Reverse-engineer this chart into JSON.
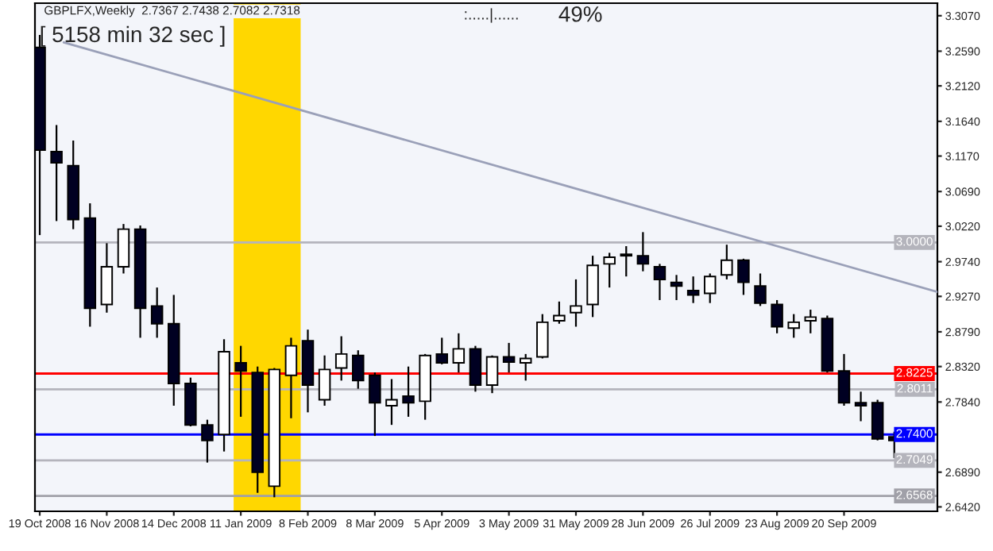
{
  "chart_data": {
    "type": "candlestick",
    "title": "GBPLFX,Weekly  2.7367 2.7438 2.7082 2.7318",
    "annotations": [
      "[ 5158 min 32 sec ]",
      ":.....|......",
      "49%"
    ],
    "x": [
      "2008-10-19",
      "2008-10-26",
      "2008-11-02",
      "2008-11-09",
      "2008-11-16",
      "2008-11-23",
      "2008-11-30",
      "2008-12-07",
      "2008-12-14",
      "2008-12-21",
      "2008-12-28",
      "2009-01-04",
      "2009-01-11",
      "2009-01-18",
      "2009-01-25",
      "2009-02-01",
      "2009-02-08",
      "2009-02-15",
      "2009-02-22",
      "2009-03-01",
      "2009-03-08",
      "2009-03-15",
      "2009-03-22",
      "2009-03-29",
      "2009-04-05",
      "2009-04-12",
      "2009-04-19",
      "2009-04-26",
      "2009-05-03",
      "2009-05-10",
      "2009-05-17",
      "2009-05-24",
      "2009-05-31",
      "2009-06-07",
      "2009-06-14",
      "2009-06-21",
      "2009-06-28",
      "2009-07-05",
      "2009-07-12",
      "2009-07-19",
      "2009-07-26",
      "2009-08-02",
      "2009-08-09",
      "2009-08-16",
      "2009-08-23",
      "2009-08-30",
      "2009-09-06",
      "2009-09-13",
      "2009-09-20",
      "2009-09-27",
      "2009-10-04",
      "2009-10-11"
    ],
    "ohlc": [
      [
        3.264,
        3.281,
        3.01,
        3.125
      ],
      [
        3.123,
        3.159,
        3.029,
        3.108
      ],
      [
        3.104,
        3.138,
        3.018,
        3.031
      ],
      [
        3.033,
        3.053,
        2.886,
        2.911
      ],
      [
        2.916,
        2.999,
        2.905,
        2.967
      ],
      [
        2.967,
        3.025,
        2.958,
        3.018
      ],
      [
        3.018,
        3.023,
        2.871,
        2.911
      ],
      [
        2.914,
        2.939,
        2.871,
        2.89
      ],
      [
        2.89,
        2.929,
        2.779,
        2.809
      ],
      [
        2.809,
        2.817,
        2.751,
        2.753
      ],
      [
        2.753,
        2.76,
        2.702,
        2.732
      ],
      [
        2.74,
        2.869,
        2.717,
        2.852
      ],
      [
        2.837,
        2.86,
        2.764,
        2.826
      ],
      [
        2.824,
        2.832,
        2.661,
        2.689
      ],
      [
        2.67,
        2.83,
        2.655,
        2.828
      ],
      [
        2.82,
        2.871,
        2.762,
        2.86
      ],
      [
        2.867,
        2.882,
        2.77,
        2.807
      ],
      [
        2.787,
        2.847,
        2.779,
        2.828
      ],
      [
        2.83,
        2.873,
        2.813,
        2.849
      ],
      [
        2.847,
        2.854,
        2.802,
        2.813
      ],
      [
        2.82,
        2.824,
        2.738,
        2.783
      ],
      [
        2.779,
        2.815,
        2.753,
        2.787
      ],
      [
        2.792,
        2.832,
        2.764,
        2.783
      ],
      [
        2.785,
        2.849,
        2.76,
        2.847
      ],
      [
        2.849,
        2.871,
        2.835,
        2.837
      ],
      [
        2.837,
        2.877,
        2.824,
        2.856
      ],
      [
        2.856,
        2.86,
        2.798,
        2.807
      ],
      [
        2.807,
        2.847,
        2.796,
        2.845
      ],
      [
        2.845,
        2.864,
        2.824,
        2.838
      ],
      [
        2.837,
        2.849,
        2.813,
        2.843
      ],
      [
        2.845,
        2.903,
        2.843,
        2.892
      ],
      [
        2.894,
        2.92,
        2.89,
        2.901
      ],
      [
        2.905,
        2.95,
        2.886,
        2.914
      ],
      [
        2.916,
        2.982,
        2.899,
        2.969
      ],
      [
        2.971,
        2.986,
        2.939,
        2.98
      ],
      [
        2.984,
        2.995,
        2.954,
        2.982
      ],
      [
        2.982,
        3.014,
        2.961,
        2.971
      ],
      [
        2.967,
        2.971,
        2.922,
        2.95
      ],
      [
        2.946,
        2.956,
        2.922,
        2.941
      ],
      [
        2.935,
        2.954,
        2.918,
        2.929
      ],
      [
        2.931,
        2.958,
        2.918,
        2.954
      ],
      [
        2.956,
        2.997,
        2.95,
        2.976
      ],
      [
        2.976,
        2.978,
        2.929,
        2.946
      ],
      [
        2.941,
        2.958,
        2.914,
        2.918
      ],
      [
        2.916,
        2.922,
        2.877,
        2.886
      ],
      [
        2.884,
        2.903,
        2.871,
        2.892
      ],
      [
        2.894,
        2.909,
        2.877,
        2.899
      ],
      [
        2.897,
        2.901,
        2.824,
        2.826
      ],
      [
        2.826,
        2.849,
        2.779,
        2.783
      ],
      [
        2.783,
        2.798,
        2.758,
        2.779
      ],
      [
        2.783,
        2.787,
        2.732,
        2.734
      ],
      [
        2.7367,
        2.7438,
        2.7082,
        2.7318
      ]
    ],
    "series": [
      {
        "type": "line",
        "color": "#9aa0b8",
        "x": [
          "2008-10-29",
          "2009-10-29"
        ],
        "values": [
          3.271,
          2.933
        ]
      }
    ],
    "ref_lines": [
      {
        "axis": "y",
        "value": 3.0,
        "label": "3.0000",
        "color": "#b4b4bc"
      },
      {
        "axis": "y",
        "value": 2.8225,
        "label": "2.8225",
        "color": "#ff0000"
      },
      {
        "axis": "y",
        "value": 2.8011,
        "label": "2.8011",
        "color": "#b4b4bc"
      },
      {
        "axis": "y",
        "value": 2.74,
        "label": "2.7400",
        "color": "#0000ff"
      },
      {
        "axis": "y",
        "value": 2.7049,
        "label": "2.7049",
        "color": "#b4b4bc"
      },
      {
        "axis": "y",
        "value": 2.6568,
        "label": "2.6568",
        "color": "#a0a0a8"
      }
    ],
    "bands": [
      {
        "axis": "x",
        "from": "2009-01-08",
        "to": "2009-02-05",
        "color": "#ffd700"
      }
    ],
    "xlim": [
      "2008-10-17",
      "2009-10-29"
    ],
    "ylim": [
      2.636,
      3.324
    ],
    "xticks": [
      {
        "value": "2008-10-19",
        "label": "19 Oct 2008"
      },
      {
        "value": "2008-11-16",
        "label": "16 Nov 2008"
      },
      {
        "value": "2008-12-14",
        "label": "14 Dec 2008"
      },
      {
        "value": "2009-01-11",
        "label": "11 Jan 2009"
      },
      {
        "value": "2009-02-08",
        "label": "8 Feb 2009"
      },
      {
        "value": "2009-03-08",
        "label": "8 Mar 2009"
      },
      {
        "value": "2009-04-05",
        "label": "5 Apr 2009"
      },
      {
        "value": "2009-05-03",
        "label": "3 May 2009"
      },
      {
        "value": "2009-05-31",
        "label": "31 May 2009"
      },
      {
        "value": "2009-06-28",
        "label": "28 Jun 2009"
      },
      {
        "value": "2009-07-26",
        "label": "26 Jul 2009"
      },
      {
        "value": "2009-08-23",
        "label": "23 Aug 2009"
      },
      {
        "value": "2009-09-20",
        "label": "20 Sep 2009"
      }
    ],
    "yticks": [
      {
        "value": 3.307,
        "label": "3.3070"
      },
      {
        "value": 3.259,
        "label": "3.2590"
      },
      {
        "value": 3.212,
        "label": "3.2120"
      },
      {
        "value": 3.164,
        "label": "3.1640"
      },
      {
        "value": 3.117,
        "label": "3.1170"
      },
      {
        "value": 3.069,
        "label": "3.0690"
      },
      {
        "value": 3.022,
        "label": "3.0220"
      },
      {
        "value": 2.974,
        "label": "2.9740"
      },
      {
        "value": 2.927,
        "label": "2.9270"
      },
      {
        "value": 2.879,
        "label": "2.8790"
      },
      {
        "value": 2.832,
        "label": "2.8320"
      },
      {
        "value": 2.784,
        "label": "2.7840"
      },
      {
        "value": 2.689,
        "label": "2.6890"
      },
      {
        "value": 2.642,
        "label": "2.6420"
      }
    ]
  }
}
